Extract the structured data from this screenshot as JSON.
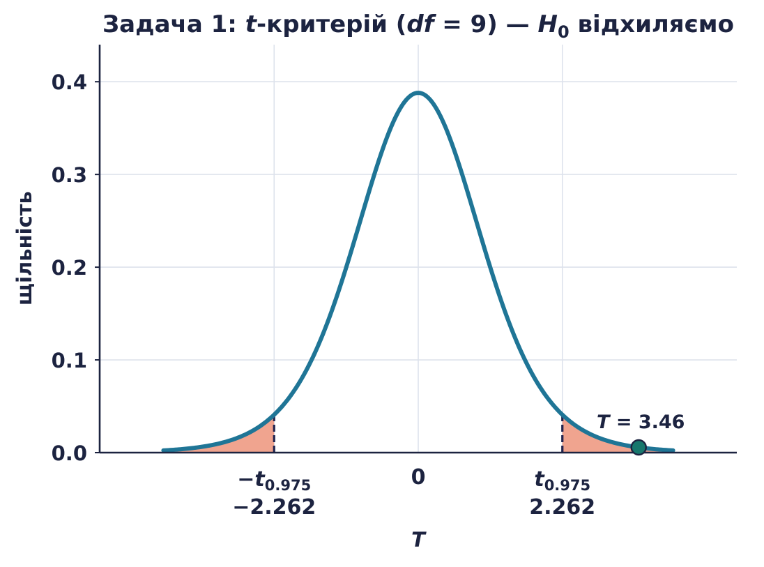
{
  "chart_data": {
    "type": "area",
    "title": {
      "prefix": "Задача 1: ",
      "t_symbol": "t",
      "after_t": "-критерій (",
      "df_symbol": "df",
      "df_eq": " = 9",
      "after_df": ") — ",
      "h_symbol": "H",
      "h_sub": "0",
      "suffix": " відхиляємо"
    },
    "xlabel": "T",
    "ylabel": "щільність",
    "df": 9,
    "xlim": [
      -5,
      5
    ],
    "ylim": [
      0,
      0.44
    ],
    "curve_range": [
      -4.0,
      4.0
    ],
    "yticks": [
      {
        "value": 0.0,
        "label": "0.0"
      },
      {
        "value": 0.1,
        "label": "0.1"
      },
      {
        "value": 0.2,
        "label": "0.2"
      },
      {
        "value": 0.3,
        "label": "0.3"
      },
      {
        "value": 0.4,
        "label": "0.4"
      }
    ],
    "xticks": [
      {
        "value": -2.262,
        "sym_prefix": "−",
        "sym": "t",
        "sub": "0.975",
        "label": "−2.262"
      },
      {
        "value": 0,
        "sym_prefix": "",
        "sym": "",
        "sub": "",
        "label": "0"
      },
      {
        "value": 2.262,
        "sym_prefix": "",
        "sym": "t",
        "sub": "0.975",
        "label": "2.262"
      }
    ],
    "critical_value": 2.262,
    "statistic": {
      "value": 3.46,
      "symbol": "T",
      "eq": " = 3.46"
    },
    "grid": true,
    "colors": {
      "curve": "#1f7596",
      "rejection": "#f0a48f",
      "critical_line": "#22244f",
      "point_fill": "#17776d",
      "point_edge": "#1c2340",
      "axis": "#1c2340",
      "grid": "#dde2ec",
      "text": "#1c2340"
    }
  }
}
